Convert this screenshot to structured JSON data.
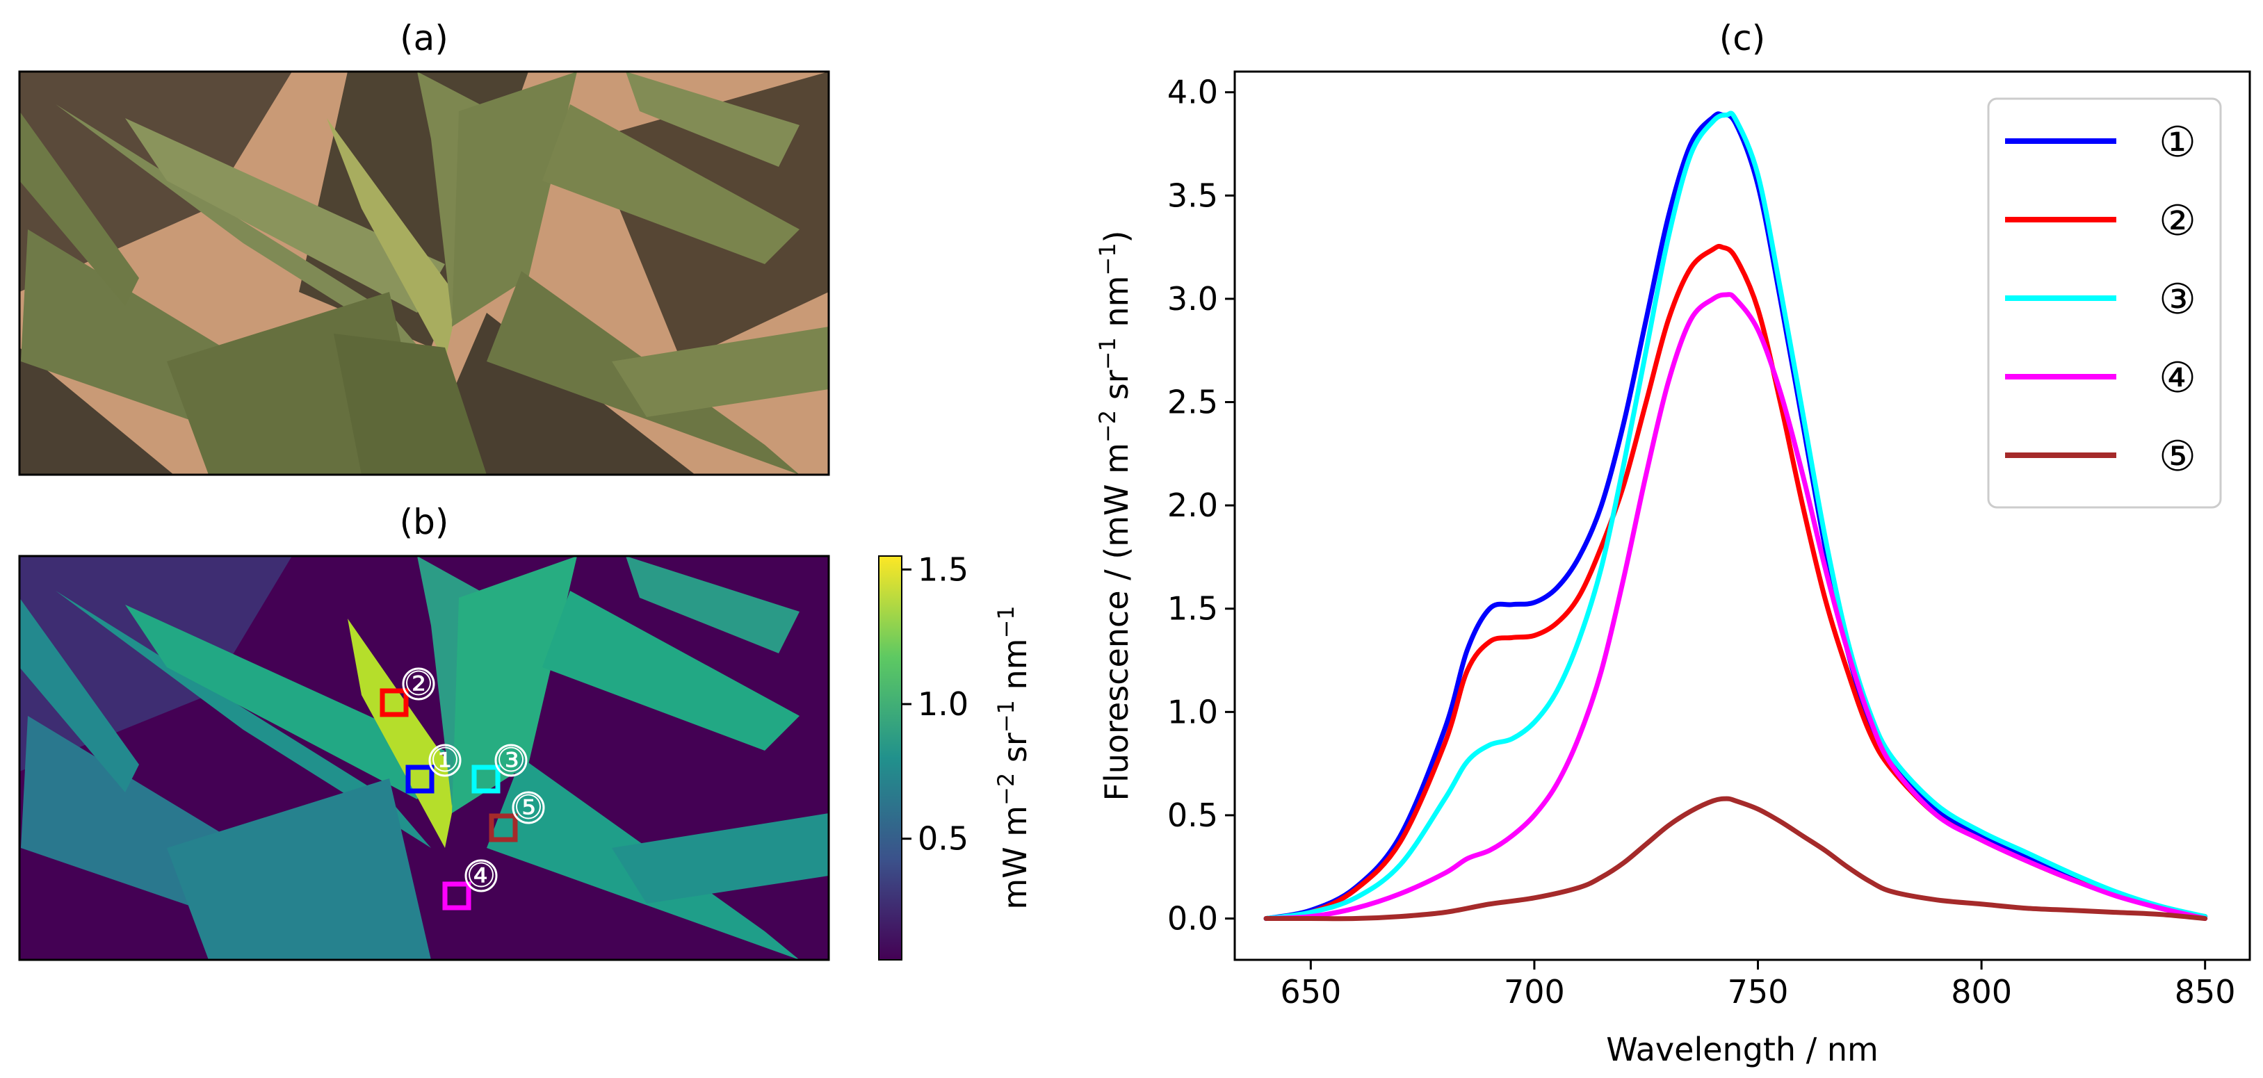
{
  "panels": {
    "a": {
      "title": "(a)",
      "image_desc": "rgb-render-of-leaves"
    },
    "b": {
      "title": "(b)",
      "image_desc": "fluorescence-map-viridis",
      "colorbar": {
        "label": "mW m$^{-2}$ sr$^{-1}$ nm$^{-1}$",
        "label_parts": {
          "unit1": "mW m",
          "sup1": "−2",
          "unit2": " sr",
          "sup2": "−1",
          "unit3": " nm",
          "sup3": "−1"
        },
        "ticks": [
          "0.5",
          "1.0",
          "1.5"
        ],
        "tick_values": [
          0.5,
          1.0,
          1.5
        ],
        "range": [
          0.05,
          1.55
        ],
        "colormap": [
          "#440154",
          "#3b528b",
          "#21918c",
          "#5ec962",
          "#fde725"
        ]
      },
      "regions": [
        {
          "id": "1",
          "label": "①",
          "color": "#0000ff"
        },
        {
          "id": "2",
          "label": "②",
          "color": "#ff0000"
        },
        {
          "id": "3",
          "label": "③",
          "color": "#00ffff"
        },
        {
          "id": "4",
          "label": "④",
          "color": "#ff00ff"
        },
        {
          "id": "5",
          "label": "⑤",
          "color": "#a52a2a"
        }
      ]
    }
  },
  "chart_data": {
    "type": "line",
    "title": "(c)",
    "xlabel": "Wavelength / nm",
    "ylabel_parts": {
      "prefix": "Fluorescence / (mW m",
      "sup1": "−2",
      "mid1": " sr",
      "sup2": "−1",
      "mid2": " nm",
      "sup3": "−1",
      "suffix": ")"
    },
    "xlim": [
      633,
      860
    ],
    "ylim": [
      -0.2,
      4.1
    ],
    "xticks": [
      650,
      700,
      750,
      800,
      850
    ],
    "xtick_labels": [
      "650",
      "700",
      "750",
      "800",
      "850"
    ],
    "yticks": [
      0.0,
      0.5,
      1.0,
      1.5,
      2.0,
      2.5,
      3.0,
      3.5,
      4.0
    ],
    "ytick_labels": [
      "0.0",
      "0.5",
      "1.0",
      "1.5",
      "2.0",
      "2.5",
      "3.0",
      "3.5",
      "4.0"
    ],
    "legend_position": "top-right",
    "series": [
      {
        "name": "①",
        "color": "#0000ff",
        "x": [
          640,
          650,
          660,
          670,
          680,
          685,
          690,
          695,
          700,
          705,
          710,
          715,
          720,
          725,
          730,
          735,
          740,
          742,
          745,
          750,
          755,
          760,
          765,
          770,
          775,
          780,
          790,
          800,
          810,
          820,
          830,
          840,
          850
        ],
        "y": [
          0.0,
          0.04,
          0.15,
          0.4,
          0.92,
          1.3,
          1.5,
          1.52,
          1.53,
          1.6,
          1.75,
          2.0,
          2.4,
          2.9,
          3.4,
          3.75,
          3.88,
          3.89,
          3.85,
          3.55,
          3.0,
          2.4,
          1.8,
          1.3,
          0.95,
          0.75,
          0.52,
          0.4,
          0.3,
          0.2,
          0.12,
          0.05,
          0.01
        ]
      },
      {
        "name": "②",
        "color": "#ff0000",
        "x": [
          640,
          650,
          660,
          670,
          680,
          685,
          690,
          695,
          700,
          705,
          710,
          715,
          720,
          725,
          730,
          735,
          740,
          742,
          745,
          750,
          755,
          760,
          765,
          770,
          775,
          780,
          790,
          800,
          810,
          820,
          830,
          840,
          850
        ],
        "y": [
          0.0,
          0.03,
          0.14,
          0.37,
          0.85,
          1.2,
          1.34,
          1.36,
          1.37,
          1.43,
          1.56,
          1.8,
          2.1,
          2.5,
          2.9,
          3.15,
          3.24,
          3.25,
          3.2,
          2.95,
          2.5,
          2.0,
          1.55,
          1.2,
          0.9,
          0.72,
          0.5,
          0.38,
          0.28,
          0.19,
          0.12,
          0.05,
          0.01
        ]
      },
      {
        "name": "③",
        "color": "#00ffff",
        "x": [
          640,
          650,
          660,
          670,
          680,
          685,
          690,
          695,
          700,
          705,
          710,
          715,
          720,
          725,
          730,
          735,
          740,
          743,
          745,
          750,
          755,
          760,
          765,
          770,
          775,
          780,
          790,
          800,
          810,
          820,
          830,
          840,
          850
        ],
        "y": [
          0.0,
          0.03,
          0.1,
          0.26,
          0.58,
          0.76,
          0.84,
          0.87,
          0.95,
          1.1,
          1.35,
          1.7,
          2.2,
          2.75,
          3.3,
          3.7,
          3.86,
          3.89,
          3.87,
          3.6,
          3.05,
          2.45,
          1.85,
          1.35,
          1.0,
          0.78,
          0.55,
          0.42,
          0.32,
          0.22,
          0.13,
          0.06,
          0.01
        ]
      },
      {
        "name": "④",
        "color": "#ff00ff",
        "x": [
          640,
          650,
          660,
          670,
          680,
          685,
          690,
          695,
          700,
          705,
          710,
          715,
          720,
          725,
          730,
          735,
          740,
          743,
          745,
          750,
          755,
          760,
          765,
          770,
          775,
          780,
          790,
          800,
          810,
          820,
          830,
          840,
          850
        ],
        "y": [
          0.0,
          0.01,
          0.05,
          0.12,
          0.22,
          0.29,
          0.33,
          0.4,
          0.5,
          0.65,
          0.88,
          1.2,
          1.65,
          2.15,
          2.6,
          2.9,
          3.0,
          3.02,
          3.0,
          2.85,
          2.55,
          2.15,
          1.7,
          1.3,
          0.97,
          0.74,
          0.5,
          0.38,
          0.28,
          0.19,
          0.11,
          0.05,
          0.0
        ]
      },
      {
        "name": "⑤",
        "color": "#a52a2a",
        "x": [
          640,
          650,
          660,
          670,
          680,
          690,
          700,
          710,
          715,
          720,
          725,
          730,
          735,
          740,
          743,
          745,
          750,
          755,
          760,
          765,
          770,
          775,
          780,
          790,
          800,
          810,
          820,
          830,
          840,
          850
        ],
        "y": [
          0.0,
          0.0,
          0.0,
          0.01,
          0.03,
          0.07,
          0.1,
          0.15,
          0.2,
          0.27,
          0.36,
          0.45,
          0.52,
          0.57,
          0.58,
          0.57,
          0.53,
          0.47,
          0.4,
          0.33,
          0.25,
          0.18,
          0.13,
          0.09,
          0.07,
          0.05,
          0.04,
          0.03,
          0.02,
          0.0
        ]
      }
    ]
  }
}
